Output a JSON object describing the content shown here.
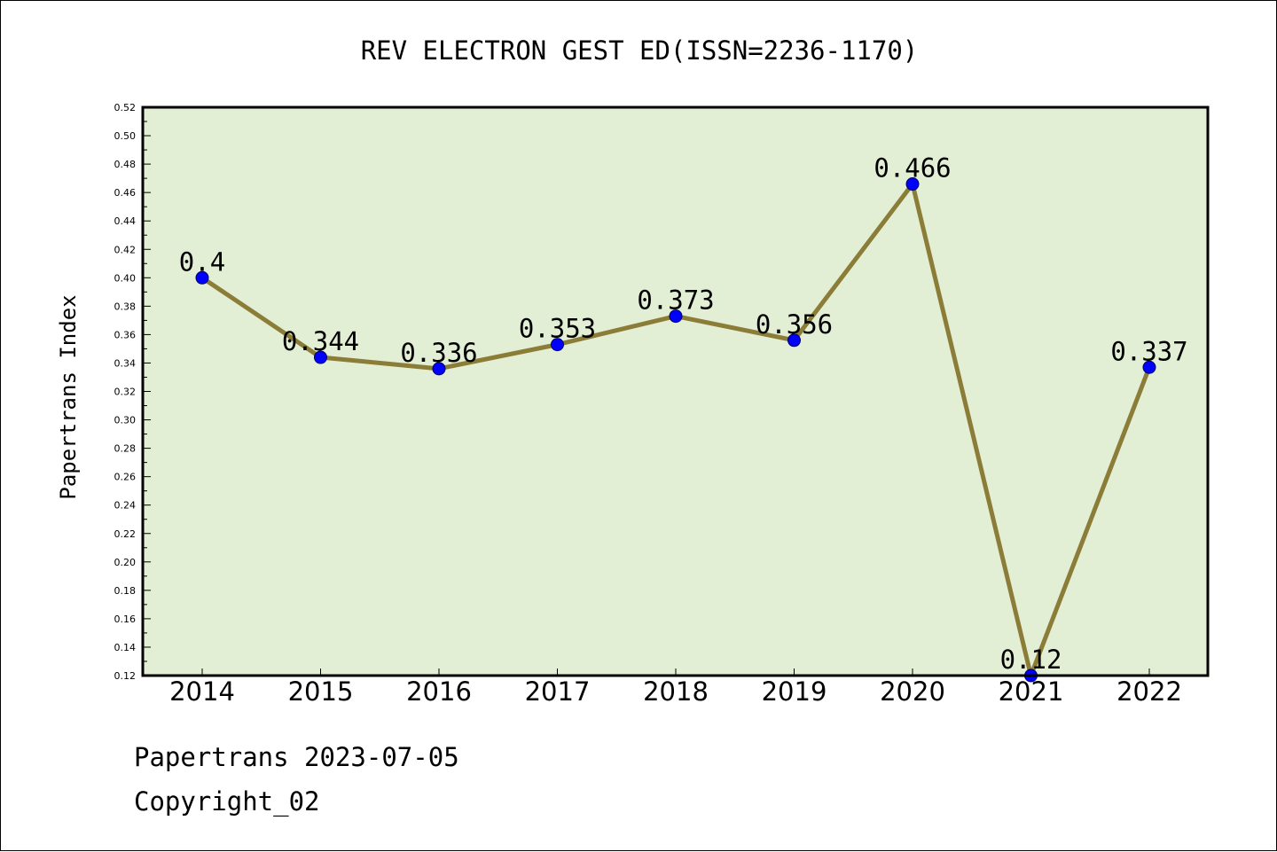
{
  "colors": {
    "plot_background": "#e2efd5",
    "line": "#8b7d38",
    "marker": "#0000ff"
  },
  "chart_data": {
    "type": "line",
    "title": "REV ELECTRON GEST ED(ISSN=2236-1170)",
    "xlabel": "",
    "ylabel": "Papertrans Index",
    "categories": [
      "2014",
      "2015",
      "2016",
      "2017",
      "2018",
      "2019",
      "2020",
      "2021",
      "2022"
    ],
    "series": [
      {
        "values": [
          0.4,
          0.344,
          0.336,
          0.353,
          0.373,
          0.356,
          0.466,
          0.12,
          0.337
        ],
        "data_labels": [
          "0.4",
          "0.344",
          "0.336",
          "0.353",
          "0.373",
          "0.356",
          "0.466",
          "0.12",
          "0.337"
        ]
      }
    ],
    "ylim": [
      0.12,
      0.52
    ],
    "y_ticks": [
      "0.12",
      "0.14",
      "0.16",
      "0.18",
      "0.20",
      "0.22",
      "0.24",
      "0.26",
      "0.28",
      "0.30",
      "0.32",
      "0.34",
      "0.36",
      "0.38",
      "0.40",
      "0.42",
      "0.44",
      "0.46",
      "0.48",
      "0.50",
      "0.52"
    ],
    "grid": false,
    "legend": "none"
  },
  "footer": {
    "date_line": "Papertrans 2023-07-05",
    "copyright": "Copyright_02"
  }
}
